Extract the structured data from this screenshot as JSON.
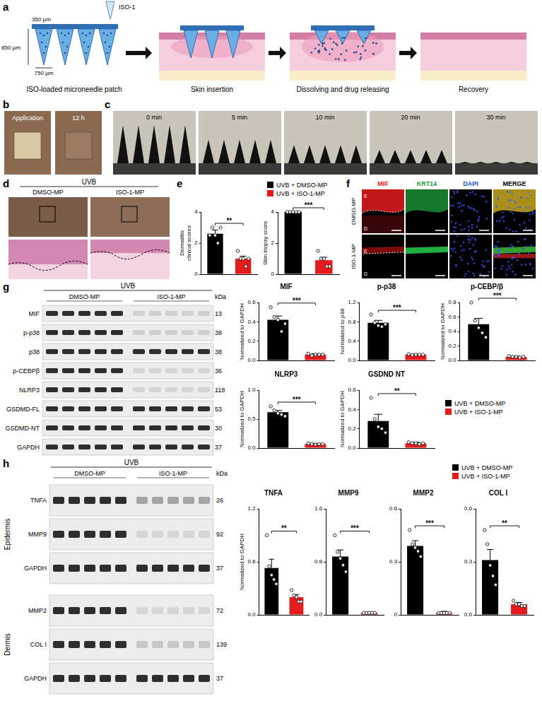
{
  "panel_letters": [
    "a",
    "b",
    "c",
    "d",
    "e",
    "f",
    "g",
    "h"
  ],
  "a": {
    "drug": "ISO-1",
    "dimensions": [
      "350 µm",
      "850 µm",
      "750 µm"
    ],
    "steps": [
      "ISO-loaded microneedle patch",
      "Skin insertion",
      "Dissolving and drug releasing",
      "Recovery"
    ]
  },
  "b": {
    "labels": [
      "Application",
      "12 h"
    ]
  },
  "c": {
    "labels": [
      "0 min",
      "5 min",
      "10 min",
      "20 min",
      "30 min"
    ]
  },
  "d": {
    "treatment": "UVB",
    "groups": [
      "DMSO-MP",
      "ISO-1-MP"
    ]
  },
  "f": {
    "channels": [
      "MIF",
      "KRT14",
      "DAPI",
      "MERGE"
    ],
    "groups": [
      "DMSO-MP",
      "ISO-1-MP"
    ],
    "layers": [
      "E",
      "D"
    ]
  },
  "g": {
    "treatment": "UVB",
    "groups": [
      "DMSO-MP",
      "ISO-1-MP"
    ],
    "unit": "kDa",
    "rows": [
      {
        "label": "MIF",
        "kda": 13
      },
      {
        "label": "p-p38",
        "kda": 38
      },
      {
        "label": "p38",
        "kda": 38
      },
      {
        "label": "p-CEBPβ",
        "kda": 36
      },
      {
        "label": "NLRP3",
        "kda": 118
      },
      {
        "label": "GSDMD-FL",
        "kda": 53
      },
      {
        "label": "GSDMD-NT",
        "kda": 30
      },
      {
        "label": "GAPDH",
        "kda": 37
      }
    ]
  },
  "h": {
    "treatment": "UVB",
    "groups": [
      "DMSO-MP",
      "ISO-1-MP"
    ],
    "unit": "kDa",
    "sections": [
      {
        "label": "Epidermis",
        "rows": [
          {
            "label": "TNFA",
            "kda": 26
          },
          {
            "label": "MMP9",
            "kda": 92
          },
          {
            "label": "GAPDH",
            "kda": 37
          }
        ]
      },
      {
        "label": "Dermis",
        "rows": [
          {
            "label": "MMP2",
            "kda": 72
          },
          {
            "label": "COL I",
            "kda": 139
          },
          {
            "label": "GAPDH",
            "kda": 37
          }
        ]
      }
    ]
  },
  "chart_data": [
    {
      "type": "bar",
      "y_label": "Dermatitis clinical scores",
      "categories": [
        "UVB + DMSO-MP",
        "UVB + ISO-1-MP"
      ],
      "colors": [
        "#000000",
        "#e41a1c"
      ],
      "values": [
        2.6,
        1.0
      ],
      "errors": [
        0.24,
        0.16
      ],
      "points": [
        [
          2.5,
          3.0,
          2.5,
          2.0,
          3.0
        ],
        [
          1.5,
          1.0,
          1.0,
          0.5,
          1.0
        ]
      ],
      "significance": "**",
      "ylim": [
        0,
        4
      ],
      "yticks": [
        0,
        2,
        4
      ],
      "tick_labels": "y",
      "grid": false,
      "legend": "top"
    },
    {
      "type": "bar",
      "y_label": "Skin biopsy score",
      "categories": [
        "UVB + DMSO-MP",
        "UVB + ISO-1-MP"
      ],
      "colors": [
        "#000000",
        "#e41a1c"
      ],
      "values": [
        4.0,
        0.9
      ],
      "errors": [
        0,
        0.19
      ],
      "points": [
        [
          4,
          4,
          4,
          4,
          4
        ],
        [
          1.5,
          1.0,
          1.0,
          0.5,
          0.5
        ]
      ],
      "significance": "***",
      "ylim": [
        0,
        4
      ],
      "yticks": [
        0,
        2,
        4
      ],
      "tick_labels": "y",
      "grid": false
    },
    {
      "type": "bar",
      "title": "MIF",
      "y_label": "Normalized to GAPDH",
      "categories": [
        "UVB + DMSO-MP",
        "UVB + ISO-1-MP"
      ],
      "colors": [
        "#000000",
        "#e41a1c"
      ],
      "values": [
        0.42,
        0.06
      ],
      "errors": [
        0.04,
        0.01
      ],
      "points": [
        [
          0.55,
          0.45,
          0.42,
          0.3,
          0.38
        ],
        [
          0.07,
          0.05,
          0.06,
          0.06,
          0.06
        ]
      ],
      "significance": "***",
      "ylim": [
        0,
        0.6
      ],
      "yticks": [
        {
          "value": 0,
          "label": "0.0"
        },
        0.2,
        0.4,
        0.6
      ],
      "tick_labels": "y",
      "grid": false
    },
    {
      "type": "bar",
      "title": "p-p38",
      "y_label": "Normalized to p38",
      "categories": [
        "UVB + DMSO-MP",
        "UVB + ISO-1-MP"
      ],
      "colors": [
        "#000000",
        "#e41a1c"
      ],
      "values": [
        0.78,
        0.12
      ],
      "errors": [
        0.05,
        0.01
      ],
      "points": [
        [
          0.95,
          0.78,
          0.72,
          0.7,
          0.75
        ],
        [
          0.13,
          0.11,
          0.12,
          0.12,
          0.12
        ]
      ],
      "significance": "***",
      "ylim": [
        0,
        1.2
      ],
      "yticks": [
        {
          "value": 0,
          "label": "0.0"
        },
        0.4,
        0.8,
        1.2
      ],
      "tick_labels": "y",
      "grid": false
    },
    {
      "type": "bar",
      "title": "p-CEBP/β",
      "y_label": "Normalized to GAPDH",
      "categories": [
        "UVB + DMSO-MP",
        "UVB + ISO-1-MP"
      ],
      "colors": [
        "#000000",
        "#e41a1c"
      ],
      "values": [
        0.5,
        0.05
      ],
      "errors": [
        0.08,
        0.01
      ],
      "points": [
        [
          0.8,
          0.55,
          0.45,
          0.38,
          0.32
        ],
        [
          0.06,
          0.05,
          0.05,
          0.04,
          0.05
        ]
      ],
      "significance": "***",
      "ylim": [
        0,
        0.8
      ],
      "yticks": [
        {
          "value": 0,
          "label": "0.0"
        },
        0.2,
        0.4,
        0.6,
        0.8
      ],
      "tick_labels": "y",
      "grid": false
    },
    {
      "type": "bar",
      "title": "NLRP3",
      "y_label": "Normalized to GAPDH",
      "categories": [
        "UVB + DMSO-MP",
        "UVB + ISO-1-MP"
      ],
      "colors": [
        "#000000",
        "#e41a1c"
      ],
      "values": [
        0.62,
        0.07
      ],
      "errors": [
        0.03,
        0.01
      ],
      "points": [
        [
          0.72,
          0.65,
          0.6,
          0.58,
          0.55
        ],
        [
          0.08,
          0.07,
          0.06,
          0.07,
          0.07
        ]
      ],
      "significance": "***",
      "ylim": [
        0,
        1
      ],
      "yticks": [
        {
          "value": 0,
          "label": "0.0"
        },
        0.5,
        {
          "value": 1,
          "label": "1.0"
        }
      ],
      "tick_labels": "y",
      "grid": false
    },
    {
      "type": "bar",
      "title": "GSDND NT",
      "y_label": "Normalized to GAPDH",
      "categories": [
        "UVB + DMSO-MP",
        "UVB + ISO-1-MP"
      ],
      "colors": [
        "#000000",
        "#e41a1c"
      ],
      "values": [
        0.28,
        0.05
      ],
      "errors": [
        0.07,
        0.01
      ],
      "points": [
        [
          0.52,
          0.3,
          0.22,
          0.2,
          0.16
        ],
        [
          0.06,
          0.05,
          0.05,
          0.04,
          0.05
        ]
      ],
      "significance": "**",
      "ylim": [
        0,
        0.6
      ],
      "yticks": [
        {
          "value": 0,
          "label": "0.0"
        },
        0.2,
        0.4,
        0.6
      ],
      "tick_labels": "y",
      "grid": false,
      "legend": "right"
    },
    {
      "type": "bar",
      "title": "TNFA",
      "y_label": "Normalized to GAPDH",
      "categories": [
        "UVB + DMSO-MP",
        "UVB + ISO-1-MP"
      ],
      "colors": [
        "#000000",
        "#e41a1c"
      ],
      "values": [
        0.53,
        0.2
      ],
      "errors": [
        0.1,
        0.03
      ],
      "points": [
        [
          0.9,
          0.55,
          0.45,
          0.4,
          0.35
        ],
        [
          0.28,
          0.22,
          0.2,
          0.15,
          0.15
        ]
      ],
      "significance": "**",
      "ylim": [
        0,
        1.2
      ],
      "yticks": [
        {
          "value": 0,
          "label": "0.0"
        },
        0.6,
        1.2
      ],
      "tick_labels": "y",
      "grid": false,
      "legend": "top"
    },
    {
      "type": "bar",
      "title": "MMP9",
      "categories": [
        "UVB + DMSO-MP",
        "UVB + ISO-1-MP"
      ],
      "colors": [
        "#000000",
        "#e41a1c"
      ],
      "values": [
        0.88,
        0.03
      ],
      "errors": [
        0.1,
        0.01
      ],
      "points": [
        [
          1.2,
          0.95,
          0.85,
          0.75,
          0.65
        ],
        [
          0.03,
          0.03,
          0.03,
          0.03,
          0.03
        ]
      ],
      "significance": "***",
      "ylim": [
        0,
        1.6
      ],
      "yticks": [
        {
          "value": 0,
          "label": "0.0"
        },
        0.8,
        1.6
      ],
      "tick_labels": "y",
      "grid": false
    },
    {
      "type": "bar",
      "title": "MMP2",
      "categories": [
        "UVB + DMSO-MP",
        "UVB + ISO-1-MP"
      ],
      "colors": [
        "#000000",
        "#e41a1c"
      ],
      "values": [
        0.39,
        0.01
      ],
      "errors": [
        0.03,
        0.01
      ],
      "points": [
        [
          0.48,
          0.4,
          0.38,
          0.36,
          0.33
        ],
        [
          0.01,
          0.01,
          0.01,
          0.01,
          0.01
        ]
      ],
      "significance": "***",
      "ylim": [
        0,
        0.6
      ],
      "yticks": [
        0,
        0.3,
        0.6
      ],
      "tick_labels": "y",
      "grid": false
    },
    {
      "type": "bar",
      "title": "COL I",
      "categories": [
        "UVB + DMSO-MP",
        "UVB + ISO-1-MP"
      ],
      "colors": [
        "#000000",
        "#e41a1c"
      ],
      "values": [
        0.31,
        0.06
      ],
      "errors": [
        0.06,
        0.01
      ],
      "points": [
        [
          0.48,
          0.4,
          0.28,
          0.22,
          0.17
        ],
        [
          0.08,
          0.06,
          0.06,
          0.05,
          0.05
        ]
      ],
      "significance": "**",
      "ylim": [
        0,
        0.6
      ],
      "yticks": [
        {
          "value": 0,
          "label": "0.0"
        },
        0.3,
        0.6
      ],
      "tick_labels": "y",
      "grid": false
    }
  ]
}
